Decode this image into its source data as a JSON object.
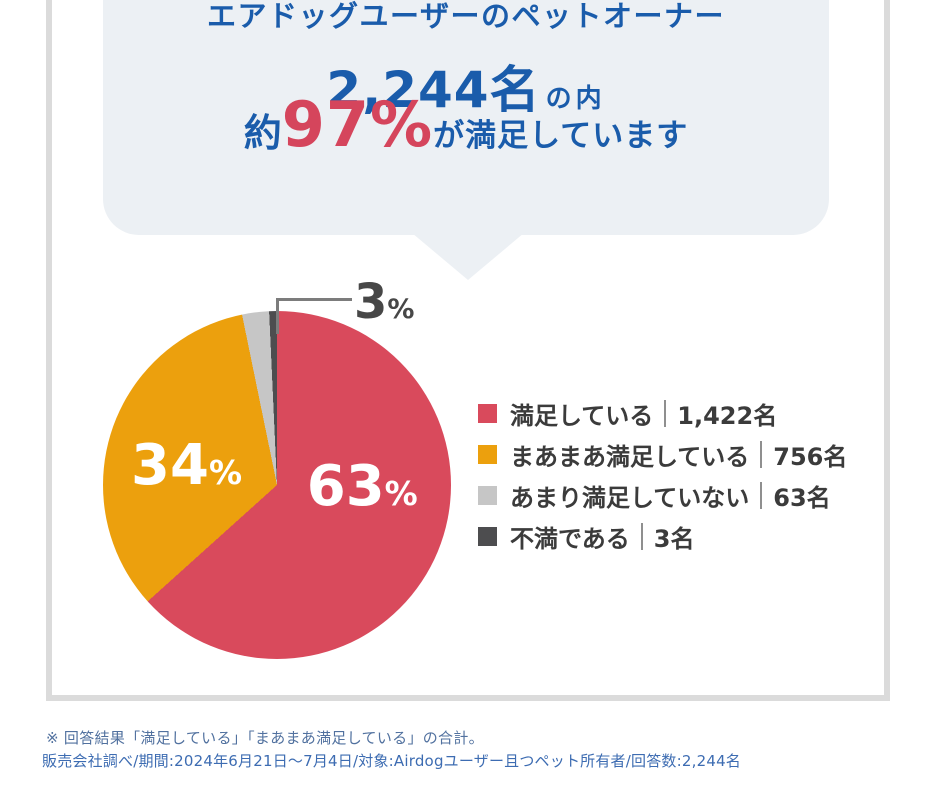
{
  "bubble": {
    "title": "エアドッグユーザーのペットオーナー",
    "count_big": "2,244名",
    "count_small": "の内",
    "approx": "約",
    "percent": "97%",
    "suffix": "が満足しています"
  },
  "chart_data": {
    "type": "pie",
    "title": "エアドッグユーザーのペットオーナー 2,244名の内 約97%が満足しています",
    "total": 2244,
    "total_label": "2,244名",
    "unit": "名",
    "legend_position": "right",
    "percent_sign": "%",
    "slices": [
      {
        "label": "満足している",
        "count": 1422,
        "count_label": "1,422名",
        "percent": 63,
        "pct_label": "63",
        "color": "#d94a5c",
        "draw_deg": 228.0
      },
      {
        "label": "まあまあ満足している",
        "count": 756,
        "count_label": "756名",
        "percent": 34,
        "pct_label": "34",
        "color": "#eca00d",
        "draw_deg": 120.4
      },
      {
        "label": "あまり満足していない",
        "count": 63,
        "count_label": "63名",
        "percent": 3,
        "pct_label": "3",
        "color": "#c6c6c6",
        "draw_deg": 9.0
      },
      {
        "label": "不満である",
        "count": 3,
        "count_label": "3名",
        "percent": 0.1,
        "pct_label": "",
        "color": "#4d4d4f",
        "draw_deg": 2.6
      }
    ]
  },
  "footnotes": {
    "line1": "※ 回答結果「満足している」「まあまあ満足している」の合計。",
    "line2": "販売会社調べ/期間:2024年6月21日〜7月4日/対象:Airdogユーザー且つペット所有者/回答数:2,244名"
  },
  "colors": {
    "accent_blue": "#1a5cab",
    "accent_red": "#d5455c",
    "bubble_bg": "#ecf0f4",
    "card_border": "#dbdbdb",
    "legend_text": "#3b3b3b",
    "callout_line": "#7c7c7c",
    "footnote_blue": "#3d6cb2"
  }
}
